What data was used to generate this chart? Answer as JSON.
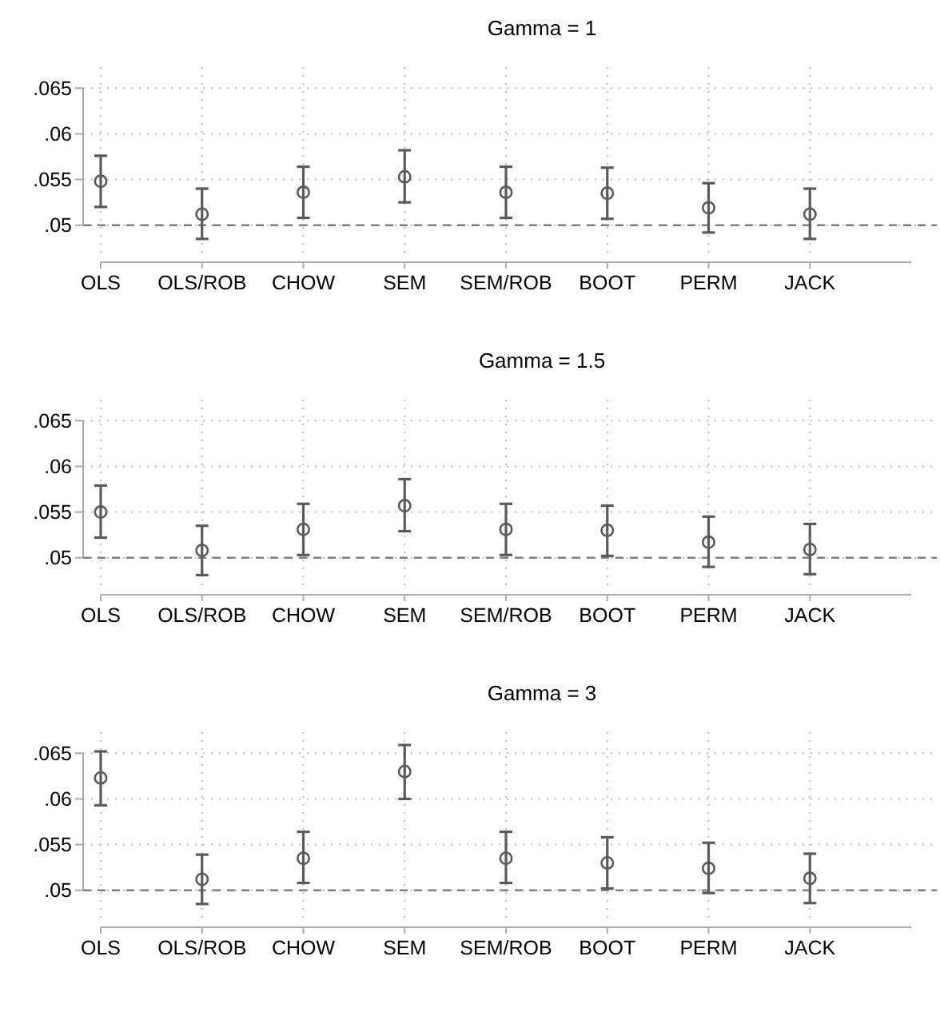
{
  "chart_data": [
    {
      "type": "scatter",
      "title": "Gamma = 1",
      "categories": [
        "OLS",
        "OLS/ROB",
        "CHOW",
        "SEM",
        "SEM/ROB",
        "BOOT",
        "PERM",
        "JACK"
      ],
      "series": [
        {
          "color": "#5a5a5a",
          "values": [
            0.0548,
            0.0512,
            0.0536,
            0.0553,
            0.0536,
            0.0535,
            0.0519,
            0.0512
          ],
          "errors": [
            [
              0.052,
              0.0576
            ],
            [
              0.0485,
              0.054
            ],
            [
              0.0508,
              0.0564
            ],
            [
              0.0525,
              0.0582
            ],
            [
              0.0508,
              0.0564
            ],
            [
              0.0507,
              0.0563
            ],
            [
              0.0492,
              0.0546
            ],
            [
              0.0485,
              0.054
            ]
          ]
        }
      ],
      "ylim": [
        0.0463,
        0.0673
      ],
      "yticks": [
        {
          "value": 0.05,
          "label": ".05"
        },
        {
          "value": 0.055,
          "label": ".055"
        },
        {
          "value": 0.06,
          "label": ".06"
        },
        {
          "value": 0.065,
          "label": ".065"
        }
      ],
      "grid": true,
      "marker": "circle",
      "ref_lines": [
        {
          "axis": "y",
          "value": 0.05,
          "color": "#7f7f7f",
          "line_style": "dashed"
        }
      ]
    },
    {
      "type": "scatter",
      "title": "Gamma = 1.5",
      "categories": [
        "OLS",
        "OLS/ROB",
        "CHOW",
        "SEM",
        "SEM/ROB",
        "BOOT",
        "PERM",
        "JACK"
      ],
      "series": [
        {
          "color": "#5a5a5a",
          "values": [
            0.055,
            0.0508,
            0.0531,
            0.0557,
            0.0531,
            0.053,
            0.0517,
            0.0509
          ],
          "errors": [
            [
              0.0522,
              0.0579
            ],
            [
              0.0481,
              0.0535
            ],
            [
              0.0503,
              0.0559
            ],
            [
              0.0529,
              0.0586
            ],
            [
              0.0503,
              0.0559
            ],
            [
              0.0502,
              0.0557
            ],
            [
              0.049,
              0.0545
            ],
            [
              0.0482,
              0.0537
            ]
          ]
        }
      ],
      "ylim": [
        0.0463,
        0.0673
      ],
      "yticks": [
        {
          "value": 0.05,
          "label": ".05"
        },
        {
          "value": 0.055,
          "label": ".055"
        },
        {
          "value": 0.06,
          "label": ".06"
        },
        {
          "value": 0.065,
          "label": ".065"
        }
      ],
      "grid": true,
      "marker": "circle",
      "ref_lines": [
        {
          "axis": "y",
          "value": 0.05,
          "color": "#7f7f7f",
          "line_style": "dashed"
        }
      ]
    },
    {
      "type": "scatter",
      "title": "Gamma = 3",
      "categories": [
        "OLS",
        "OLS/ROB",
        "CHOW",
        "SEM",
        "SEM/ROB",
        "BOOT",
        "PERM",
        "JACK"
      ],
      "series": [
        {
          "color": "#5a5a5a",
          "values": [
            0.0623,
            0.0512,
            0.0535,
            0.063,
            0.0535,
            0.053,
            0.0524,
            0.0513
          ],
          "errors": [
            [
              0.0593,
              0.0652
            ],
            [
              0.0485,
              0.0539
            ],
            [
              0.0508,
              0.0564
            ],
            [
              0.06,
              0.0659
            ],
            [
              0.0508,
              0.0564
            ],
            [
              0.0502,
              0.0558
            ],
            [
              0.0497,
              0.0552
            ],
            [
              0.0486,
              0.054
            ]
          ]
        }
      ],
      "ylim": [
        0.0463,
        0.0673
      ],
      "yticks": [
        {
          "value": 0.05,
          "label": ".05"
        },
        {
          "value": 0.055,
          "label": ".055"
        },
        {
          "value": 0.06,
          "label": ".06"
        },
        {
          "value": 0.065,
          "label": ".065"
        }
      ],
      "grid": true,
      "marker": "circle",
      "ref_lines": [
        {
          "axis": "y",
          "value": 0.05,
          "color": "#7f7f7f",
          "line_style": "dashed"
        }
      ]
    }
  ]
}
